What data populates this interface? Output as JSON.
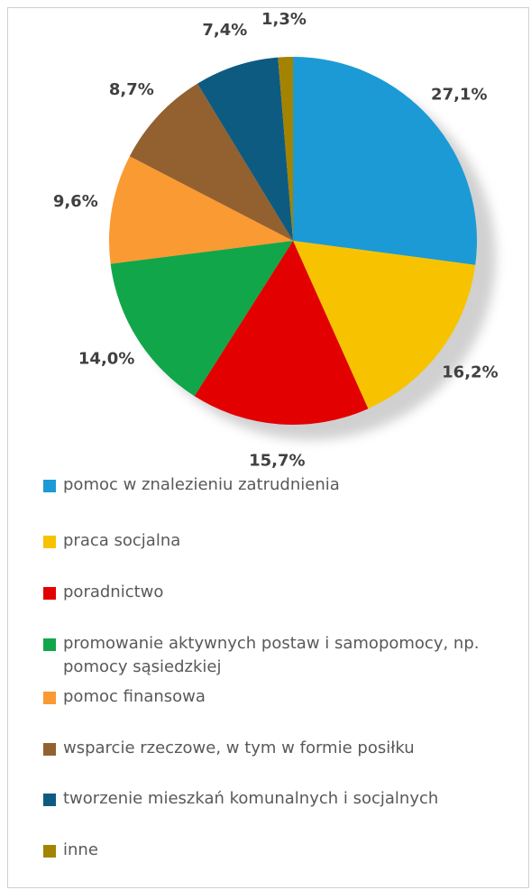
{
  "chart_data": {
    "type": "pie",
    "categories": [
      "pomoc w znalezieniu zatrudnienia",
      "praca socjalna",
      "poradnictwo",
      "promowanie aktywnych postaw i samopomocy, np. pomocy sąsiedzkiej",
      "pomoc finansowa",
      "wsparcie rzeczowe, w tym w formie posiłku",
      "tworzenie mieszkań komunalnych i socjalnych",
      "inne"
    ],
    "values": [
      27.1,
      16.2,
      15.7,
      14.0,
      9.6,
      8.7,
      7.4,
      1.3
    ],
    "value_labels": [
      "27,1%",
      "16,2%",
      "15,7%",
      "14,0%",
      "9,6%",
      "8,7%",
      "7,4%",
      "1,3%"
    ],
    "colors": [
      "#1b9ad6",
      "#f7c300",
      "#e30000",
      "#12a64a",
      "#fa9a32",
      "#93612f",
      "#0e5b82",
      "#a38300"
    ],
    "legend": "bottom"
  }
}
